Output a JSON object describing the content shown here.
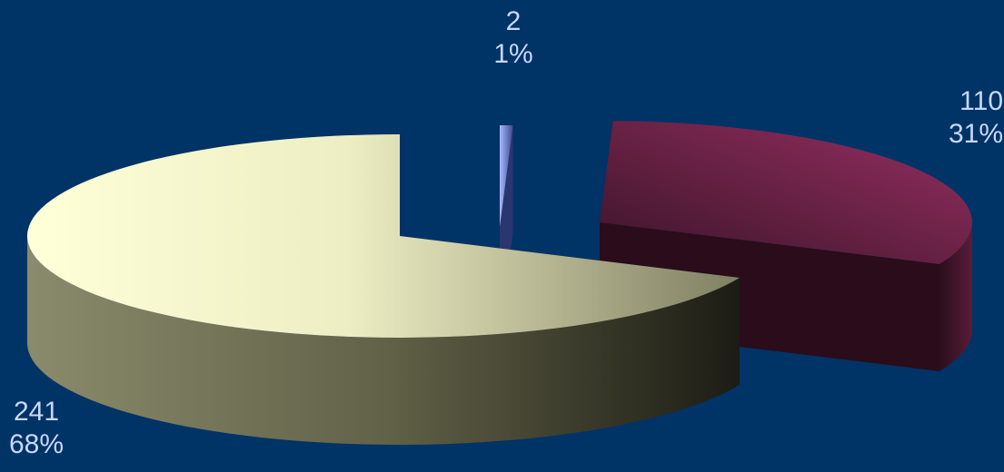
{
  "chart_data": {
    "type": "pie",
    "style": "3d-exploded",
    "background": "#003366",
    "slices": [
      {
        "value": 2,
        "percent": "1%",
        "color": "#8a9cf0"
      },
      {
        "value": 110,
        "percent": "31%",
        "color": "#8c2d5c"
      },
      {
        "value": 241,
        "percent": "68%",
        "color": "#fffde0"
      }
    ],
    "labels": [
      {
        "value": "2",
        "percent": "1%"
      },
      {
        "value": "110",
        "percent": "31%"
      },
      {
        "value": "241",
        "percent": "68%"
      }
    ],
    "label_color": "#c8d8f8"
  }
}
